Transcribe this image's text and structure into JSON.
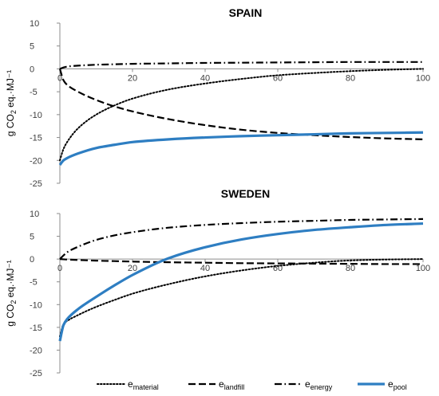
{
  "chart_data": [
    {
      "type": "line",
      "title": "SPAIN",
      "ylabel": "g CO2 eq.·MJ⁻¹",
      "xlim": [
        0,
        100
      ],
      "ylim": [
        -25,
        10
      ],
      "x_ticks": [
        "0",
        "20",
        "40",
        "60",
        "80",
        "100"
      ],
      "y_ticks": [
        "10",
        "5",
        "0",
        "-5",
        "-10",
        "-15",
        "-20",
        "-25"
      ],
      "x": [
        0,
        1,
        2,
        5,
        10,
        15,
        20,
        30,
        40,
        50,
        60,
        70,
        80,
        90,
        100
      ],
      "series": [
        {
          "name": "e_material",
          "style": "dotted",
          "color": "#000000",
          "values": [
            -20,
            -17.5,
            -16.0,
            -13.0,
            -10.0,
            -8.0,
            -6.5,
            -4.5,
            -3.2,
            -2.2,
            -1.4,
            -0.9,
            -0.5,
            -0.2,
            0.0
          ]
        },
        {
          "name": "e_landfill",
          "style": "dashed",
          "color": "#000000",
          "values": [
            0,
            -2.5,
            -3.5,
            -5.0,
            -6.8,
            -8.2,
            -9.3,
            -11.0,
            -12.3,
            -13.3,
            -14.0,
            -14.5,
            -14.9,
            -15.2,
            -15.4
          ]
        },
        {
          "name": "e_energy",
          "style": "dashdot",
          "color": "#000000",
          "values": [
            0,
            0.3,
            0.5,
            0.7,
            0.9,
            1.0,
            1.1,
            1.2,
            1.3,
            1.35,
            1.4,
            1.45,
            1.5,
            1.5,
            1.5
          ]
        },
        {
          "name": "e_pool",
          "style": "solid",
          "color": "#2E7EC2",
          "values": [
            -21,
            -20.0,
            -19.5,
            -18.5,
            -17.3,
            -16.6,
            -16.0,
            -15.4,
            -15.0,
            -14.7,
            -14.5,
            -14.3,
            -14.1,
            -14.0,
            -13.9
          ]
        }
      ]
    },
    {
      "type": "line",
      "title": "SWEDEN",
      "ylabel": "g CO2 eq.·MJ⁻¹",
      "xlim": [
        0,
        100
      ],
      "ylim": [
        -25,
        10
      ],
      "x_ticks": [
        "0",
        "20",
        "40",
        "60",
        "80",
        "100"
      ],
      "y_ticks": [
        "10",
        "5",
        "0",
        "-5",
        "-10",
        "-15",
        "-20",
        "-25"
      ],
      "x": [
        0,
        1,
        2,
        5,
        10,
        15,
        20,
        30,
        40,
        50,
        60,
        70,
        80,
        90,
        100
      ],
      "series": [
        {
          "name": "e_material",
          "style": "dotted",
          "color": "#000000",
          "values": [
            -17,
            -14.3,
            -13.6,
            -12.3,
            -10.5,
            -9.0,
            -7.6,
            -5.5,
            -3.8,
            -2.5,
            -1.5,
            -0.8,
            -0.3,
            -0.1,
            0.0
          ]
        },
        {
          "name": "e_landfill",
          "style": "dashed",
          "color": "#000000",
          "values": [
            0,
            -0.05,
            -0.1,
            -0.2,
            -0.35,
            -0.45,
            -0.55,
            -0.7,
            -0.8,
            -0.9,
            -0.95,
            -1.0,
            -1.05,
            -1.1,
            -1.1
          ]
        },
        {
          "name": "e_energy",
          "style": "dashdot",
          "color": "#000000",
          "values": [
            0,
            0.8,
            1.5,
            2.7,
            4.2,
            5.2,
            5.9,
            6.9,
            7.5,
            7.9,
            8.2,
            8.4,
            8.6,
            8.7,
            8.8
          ]
        },
        {
          "name": "e_pool",
          "style": "solid",
          "color": "#2E7EC2",
          "values": [
            -18,
            -14.5,
            -13.2,
            -11.0,
            -8.3,
            -5.8,
            -3.5,
            0.2,
            2.6,
            4.3,
            5.5,
            6.4,
            7.0,
            7.5,
            7.8
          ]
        }
      ]
    }
  ],
  "legend": {
    "position": "bottom",
    "items": [
      {
        "base": "e",
        "sub": "material",
        "style": "dotted"
      },
      {
        "base": "e",
        "sub": "landfill",
        "style": "dashed"
      },
      {
        "base": "e",
        "sub": "energy",
        "style": "dashdot"
      },
      {
        "base": "e",
        "sub": "pool",
        "style": "solid",
        "color": "#2E7EC2"
      }
    ]
  }
}
